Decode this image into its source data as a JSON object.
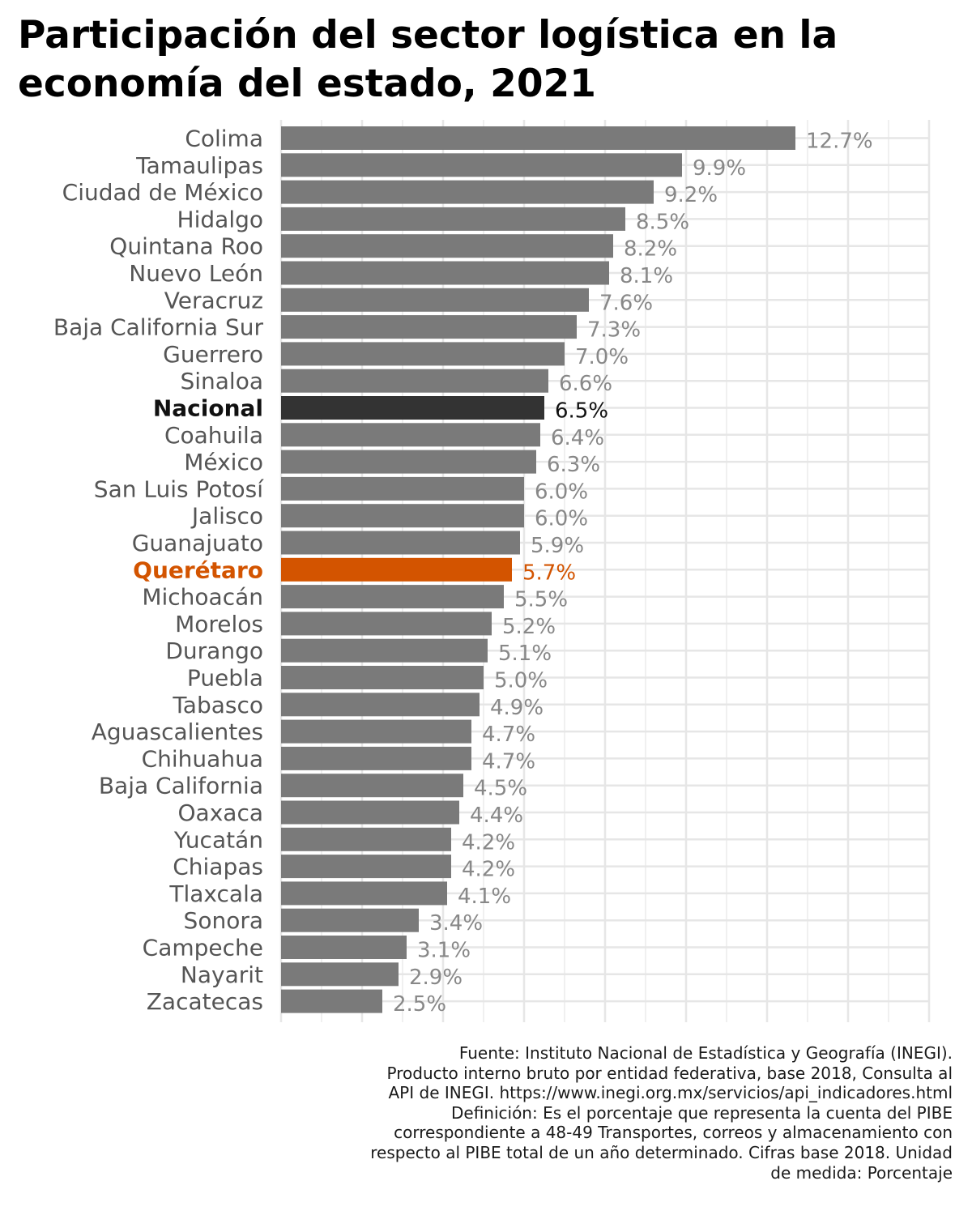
{
  "title_lines": [
    "Participación del sector logística en la",
    "economía del estado, 2021"
  ],
  "colors": {
    "default_bar": "#7a7a7a",
    "default_label": "#555555",
    "default_value": "#888888",
    "national_bar": "#333333",
    "national_text": "#111111",
    "highlight": "#d35400",
    "grid": "#e6e6e6"
  },
  "chart_data": {
    "type": "bar",
    "orientation": "horizontal",
    "value_suffix": "%",
    "xlim": [
      0,
      16
    ],
    "grid": true,
    "categories": [
      "Colima",
      "Tamaulipas",
      "Ciudad de México",
      "Hidalgo",
      "Quintana Roo",
      "Nuevo León",
      "Veracruz",
      "Baja California Sur",
      "Guerrero",
      "Sinaloa",
      "Nacional",
      "Coahuila",
      "México",
      "San Luis Potosí",
      "Jalisco",
      "Guanajuato",
      "Querétaro",
      "Michoacán",
      "Morelos",
      "Durango",
      "Puebla",
      "Tabasco",
      "Aguascalientes",
      "Chihuahua",
      "Baja California",
      "Oaxaca",
      "Yucatán",
      "Chiapas",
      "Tlaxcala",
      "Sonora",
      "Campeche",
      "Nayarit",
      "Zacatecas"
    ],
    "values": [
      12.7,
      9.9,
      9.2,
      8.5,
      8.2,
      8.1,
      7.6,
      7.3,
      7.0,
      6.6,
      6.5,
      6.4,
      6.3,
      6.0,
      6.0,
      5.9,
      5.7,
      5.5,
      5.2,
      5.1,
      5.0,
      4.9,
      4.7,
      4.7,
      4.5,
      4.4,
      4.2,
      4.2,
      4.1,
      3.4,
      3.1,
      2.9,
      2.5
    ],
    "value_labels": [
      "12.7%",
      "9.9%",
      "9.2%",
      "8.5%",
      "8.2%",
      "8.1%",
      "7.6%",
      "7.3%",
      "7.0%",
      "6.6%",
      "6.5%",
      "6.4%",
      "6.3%",
      "6.0%",
      "6.0%",
      "5.9%",
      "5.7%",
      "5.5%",
      "5.2%",
      "5.1%",
      "5.0%",
      "4.9%",
      "4.7%",
      "4.7%",
      "4.5%",
      "4.4%",
      "4.2%",
      "4.2%",
      "4.1%",
      "3.4%",
      "3.1%",
      "2.9%",
      "2.5%"
    ],
    "highlight_category": "Querétaro",
    "national_category": "Nacional"
  },
  "caption_lines": [
    "Fuente: Instituto Nacional de Estadística y Geografía (INEGI).",
    "Producto interno bruto por entidad federativa, base 2018, Consulta al",
    "API de INEGI. https://www.inegi.org.mx/servicios/api_indicadores.html",
    "Definición: Es el porcentaje que representa la cuenta del PIBE",
    "correspondiente a 48-49 Transportes, correos y almacenamiento con",
    "respecto al PIBE total de un año determinado. Cifras base 2018. Unidad",
    "de medida: Porcentaje"
  ]
}
